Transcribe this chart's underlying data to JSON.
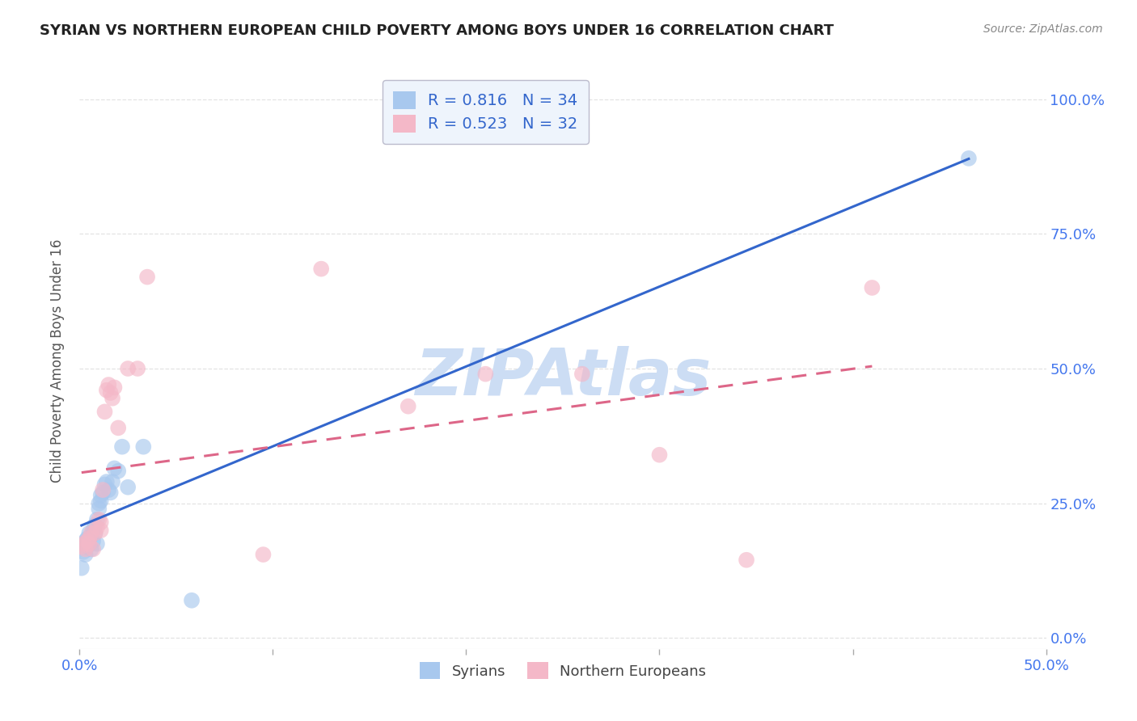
{
  "title": "SYRIAN VS NORTHERN EUROPEAN CHILD POVERTY AMONG BOYS UNDER 16 CORRELATION CHART",
  "source": "Source: ZipAtlas.com",
  "ylabel": "Child Poverty Among Boys Under 16",
  "xlim": [
    0.0,
    0.5
  ],
  "ylim": [
    -0.02,
    1.05
  ],
  "syrians_R": "0.816",
  "syrians_N": "34",
  "northerneu_R": "0.523",
  "northerneu_N": "32",
  "syrians_color": "#a8c8ee",
  "northerneu_color": "#f4b8c8",
  "syrians_line_color": "#3366cc",
  "northerneu_line_color": "#dd6688",
  "legend_box_color": "#eef4fc",
  "watermark_color": "#ccddf4",
  "syrians_x": [
    0.001,
    0.002,
    0.002,
    0.003,
    0.003,
    0.004,
    0.004,
    0.005,
    0.005,
    0.006,
    0.006,
    0.007,
    0.007,
    0.008,
    0.008,
    0.009,
    0.009,
    0.01,
    0.01,
    0.011,
    0.011,
    0.012,
    0.013,
    0.014,
    0.015,
    0.016,
    0.017,
    0.018,
    0.02,
    0.022,
    0.025,
    0.033,
    0.058,
    0.46
  ],
  "syrians_y": [
    0.13,
    0.16,
    0.175,
    0.155,
    0.18,
    0.17,
    0.185,
    0.195,
    0.175,
    0.165,
    0.19,
    0.2,
    0.18,
    0.21,
    0.195,
    0.22,
    0.175,
    0.25,
    0.24,
    0.255,
    0.265,
    0.27,
    0.285,
    0.29,
    0.275,
    0.27,
    0.29,
    0.315,
    0.31,
    0.355,
    0.28,
    0.355,
    0.07,
    0.89
  ],
  "northerneu_x": [
    0.001,
    0.002,
    0.003,
    0.004,
    0.005,
    0.005,
    0.006,
    0.007,
    0.008,
    0.009,
    0.01,
    0.011,
    0.011,
    0.012,
    0.013,
    0.014,
    0.015,
    0.016,
    0.017,
    0.018,
    0.02,
    0.025,
    0.03,
    0.035,
    0.095,
    0.125,
    0.17,
    0.21,
    0.26,
    0.3,
    0.345,
    0.41
  ],
  "northerneu_y": [
    0.17,
    0.175,
    0.165,
    0.18,
    0.175,
    0.185,
    0.195,
    0.165,
    0.195,
    0.205,
    0.22,
    0.2,
    0.215,
    0.275,
    0.42,
    0.46,
    0.47,
    0.455,
    0.445,
    0.465,
    0.39,
    0.5,
    0.5,
    0.67,
    0.155,
    0.685,
    0.43,
    0.49,
    0.49,
    0.34,
    0.145,
    0.65
  ],
  "background_color": "#ffffff",
  "grid_color": "#dddddd",
  "title_color": "#222222",
  "tick_label_color": "#4477ee"
}
